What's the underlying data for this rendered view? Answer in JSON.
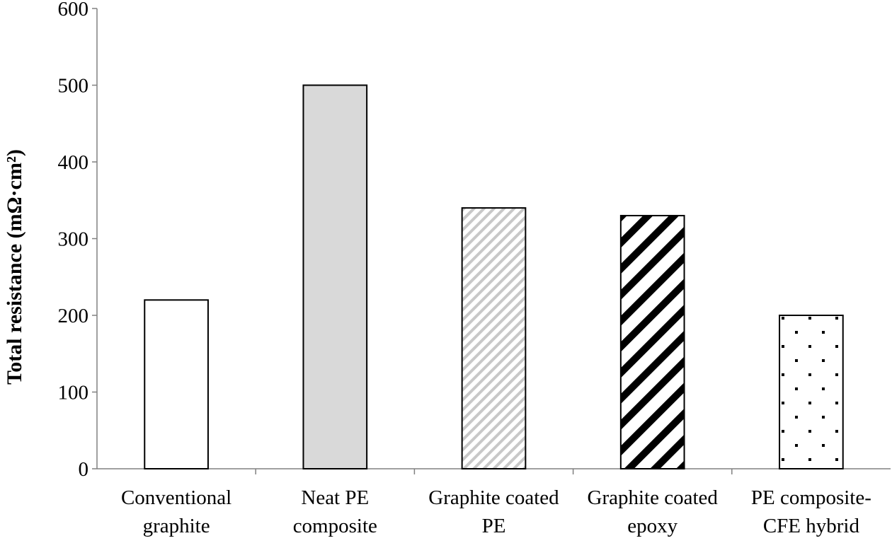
{
  "chart_data": {
    "type": "bar",
    "title": "",
    "xlabel": "",
    "ylabel": "Total resistance (mΩ·cm²)",
    "ylim": [
      0,
      600
    ],
    "yticks": [
      0,
      100,
      200,
      300,
      400,
      500,
      600
    ],
    "grid": false,
    "legend": "none",
    "categories": [
      [
        "Conventional",
        "graphite"
      ],
      [
        "Neat PE",
        "composite"
      ],
      [
        "Graphite coated",
        "PE"
      ],
      [
        "Graphite coated",
        "epoxy"
      ],
      [
        "PE composite-",
        "CFE hybrid"
      ]
    ],
    "values": [
      220,
      500,
      340,
      330,
      200
    ],
    "fills": [
      "white",
      "light-gray",
      "light-diagonal-hatch",
      "bold-diagonal-stripes",
      "dots"
    ]
  }
}
